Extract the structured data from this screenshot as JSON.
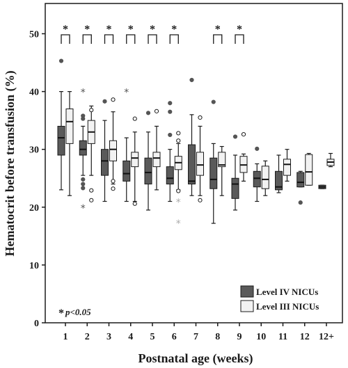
{
  "chart_data": {
    "type": "boxplot",
    "xlabel": "Postnatal age (weeks)",
    "ylabel": "Hematocrit before transfusion (%)",
    "ylim": [
      0,
      54
    ],
    "yticks": [
      0,
      10,
      20,
      30,
      40,
      50
    ],
    "categories": [
      "1",
      "2",
      "3",
      "4",
      "5",
      "6",
      "7",
      "8",
      "9",
      "10",
      "11",
      "12",
      "12+"
    ],
    "series": [
      {
        "name": "Level IV NICUs",
        "color": "#5a5a5a",
        "boxes": [
          {
            "min": 23,
            "q1": 29,
            "median": 32,
            "q3": 34,
            "max": 40,
            "outliers": [
              45.3
            ]
          },
          {
            "min": 25.5,
            "q1": 29,
            "median": 30,
            "q3": 31.5,
            "max": 34,
            "outliers": [
              35.8,
              35.3,
              24.8,
              24,
              23.3
            ],
            "extremes": [
              40,
              20
            ]
          },
          {
            "min": 21,
            "q1": 25.5,
            "median": 28,
            "q3": 30,
            "max": 35,
            "outliers": [
              38.3
            ]
          },
          {
            "min": 21,
            "q1": 24.5,
            "median": 25.8,
            "q3": 28,
            "max": 32,
            "outliers": [],
            "extremes": [
              40
            ]
          },
          {
            "min": 19.5,
            "q1": 24,
            "median": 26,
            "q3": 28.5,
            "max": 33,
            "outliers": [
              36.3
            ]
          },
          {
            "min": 21,
            "q1": 24,
            "median": 25,
            "q3": 27,
            "max": 30,
            "outliers": [
              38,
              36.5,
              32.5
            ]
          },
          {
            "min": 22,
            "q1": 24,
            "median": 24.5,
            "q3": 30.8,
            "max": 36,
            "outliers": [
              42
            ]
          },
          {
            "min": 17.2,
            "q1": 23.2,
            "median": 24.8,
            "q3": 28.5,
            "max": 31,
            "outliers": [
              38.2
            ]
          },
          {
            "min": 19.5,
            "q1": 21.5,
            "median": 24,
            "q3": 25,
            "max": 29,
            "outliers": [
              32.2
            ]
          },
          {
            "min": 21,
            "q1": 23.5,
            "median": 25,
            "q3": 26.2,
            "max": 27.5,
            "outliers": [
              30.1
            ]
          },
          {
            "min": 22.5,
            "q1": 23,
            "median": 23.5,
            "q3": 26.2,
            "max": 29,
            "outliers": []
          },
          {
            "min": 23.5,
            "q1": 23.5,
            "median": 24.3,
            "q3": 26,
            "max": 26.2,
            "outliers": [
              20.8
            ]
          },
          {
            "min": 23.2,
            "q1": 23.2,
            "median": 23.5,
            "q3": 23.8,
            "max": 23.8,
            "outliers": []
          }
        ]
      },
      {
        "name": "Level III NICUs",
        "color": "#f2f2f2",
        "boxes": [
          {
            "min": 22,
            "q1": 31,
            "median": 34.8,
            "q3": 37,
            "max": 40,
            "outliers": []
          },
          {
            "min": 25.5,
            "q1": 31,
            "median": 33,
            "q3": 35,
            "max": 37.5,
            "outliers": [
              36.8,
              22.9,
              21.2
            ]
          },
          {
            "min": 24,
            "q1": 28,
            "median": 30,
            "q3": 31.5,
            "max": 36.5,
            "outliers": [
              38.6,
              24.5,
              23.2
            ]
          },
          {
            "min": 21,
            "q1": 27,
            "median": 28.5,
            "q3": 29.5,
            "max": 33,
            "outliers": [
              35.3,
              20.6
            ]
          },
          {
            "min": 23,
            "q1": 27,
            "median": 28.5,
            "q3": 29.5,
            "max": 34,
            "outliers": [
              36.6
            ]
          },
          {
            "min": 23,
            "q1": 26.5,
            "median": 27.7,
            "q3": 28.8,
            "max": 31,
            "outliers": [
              31.5,
              32.8,
              22.8
            ],
            "extremes": [
              21,
              17.3
            ]
          },
          {
            "min": 22,
            "q1": 25.5,
            "median": 27.3,
            "q3": 29.5,
            "max": 34,
            "outliers": [
              35.5,
              21.2
            ]
          },
          {
            "min": 22,
            "q1": 27,
            "median": 27.3,
            "q3": 29.5,
            "max": 30.5,
            "outliers": []
          },
          {
            "min": 24.5,
            "q1": 26,
            "median": 27.3,
            "q3": 28.8,
            "max": 29.2,
            "outliers": [
              32.6
            ]
          },
          {
            "min": 22,
            "q1": 23.2,
            "median": 24.8,
            "q3": 27.1,
            "max": 28,
            "outliers": []
          },
          {
            "min": 24.5,
            "q1": 25.5,
            "median": 27.4,
            "q3": 28.3,
            "max": 30,
            "outliers": []
          },
          {
            "min": 23.8,
            "q1": 23.8,
            "median": 26.1,
            "q3": 29.1,
            "max": 29.3,
            "outliers": []
          },
          {
            "min": 27,
            "q1": 27.2,
            "median": 27.8,
            "q3": 28.3,
            "max": 29.3,
            "outliers": []
          }
        ]
      }
    ],
    "significant": [
      "1",
      "2",
      "3",
      "4",
      "5",
      "6",
      "8",
      "9"
    ],
    "significance_marker": "*",
    "footnote_star": "*",
    "footnote": "p<0.05",
    "legend": "bottom-right",
    "grid": false
  }
}
